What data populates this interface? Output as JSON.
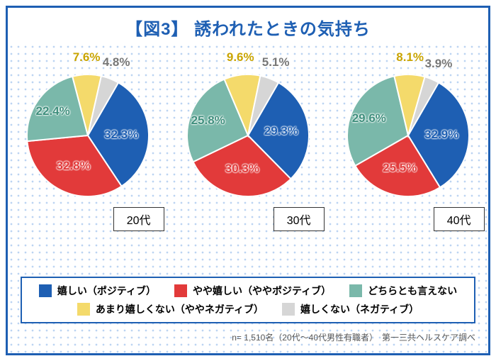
{
  "title": "【図3】 誘われたときの気持ち",
  "title_color": "#1e5fb3",
  "title_fontsize": 24,
  "frame_border_color": "#1e5fb3",
  "dot_bg_color": "#bcd4f2",
  "pie_radius": 86,
  "pct_fontsize": 17,
  "colors": {
    "positive": "#1e5fb3",
    "somewhat_positive": "#e23a3a",
    "neutral": "#7ab8aa",
    "somewhat_negative": "#f4da6b",
    "negative": "#d6d6d6"
  },
  "categories": [
    {
      "key": "positive",
      "label": "嬉しい（ポジティブ）"
    },
    {
      "key": "somewhat_positive",
      "label": "やや嬉しい（ややポジティブ）"
    },
    {
      "key": "neutral",
      "label": "どちらとも言えない"
    },
    {
      "key": "somewhat_negative",
      "label": "あまり嬉しくない（ややネガティブ）"
    },
    {
      "key": "negative",
      "label": "嬉しくない（ネガティブ）"
    }
  ],
  "groups": [
    {
      "age_label": "20代",
      "slices": [
        {
          "key": "positive",
          "value": 32.3,
          "display": "32.3%",
          "label_r": 0.55
        },
        {
          "key": "somewhat_positive",
          "value": 32.8,
          "display": "32.8%",
          "label_r": 0.55
        },
        {
          "key": "neutral",
          "value": 22.4,
          "display": "22.4%",
          "label_r": 0.7
        },
        {
          "key": "somewhat_negative",
          "value": 7.6,
          "display": "7.6%",
          "label_r": 1.28
        },
        {
          "key": "negative",
          "value": 4.8,
          "display": "4.8%",
          "label_r": 1.28
        }
      ]
    },
    {
      "age_label": "30代",
      "slices": [
        {
          "key": "positive",
          "value": 29.3,
          "display": "29.3%",
          "label_r": 0.55
        },
        {
          "key": "somewhat_positive",
          "value": 30.3,
          "display": "30.3%",
          "label_r": 0.55
        },
        {
          "key": "neutral",
          "value": 25.8,
          "display": "25.8%",
          "label_r": 0.7
        },
        {
          "key": "somewhat_negative",
          "value": 9.6,
          "display": "9.6%",
          "label_r": 1.28
        },
        {
          "key": "negative",
          "value": 5.1,
          "display": "5.1%",
          "label_r": 1.28
        }
      ]
    },
    {
      "age_label": "40代",
      "slices": [
        {
          "key": "positive",
          "value": 32.9,
          "display": "32.9%",
          "label_r": 0.55
        },
        {
          "key": "somewhat_positive",
          "value": 25.5,
          "display": "25.5%",
          "label_r": 0.55
        },
        {
          "key": "neutral",
          "value": 29.6,
          "display": "29.6%",
          "label_r": 0.7
        },
        {
          "key": "somewhat_negative",
          "value": 8.1,
          "display": "8.1%",
          "label_r": 1.28
        },
        {
          "key": "negative",
          "value": 3.9,
          "display": "3.9%",
          "label_r": 1.28
        }
      ]
    }
  ],
  "start_angle_deg": 30,
  "start_angle_neg_offset": 0,
  "slice_stroke": "#ffffff",
  "slice_stroke_width": 2,
  "label_colors": {
    "positive": "#1e5fb3",
    "somewhat_positive": "#e23a3a",
    "neutral": "#3f8f7d",
    "somewhat_negative": "#c9a400",
    "negative": "#777777"
  },
  "footnote": "n= 1,510名（20代〜40代男性有職者）　第一三共ヘルスケア調べ"
}
